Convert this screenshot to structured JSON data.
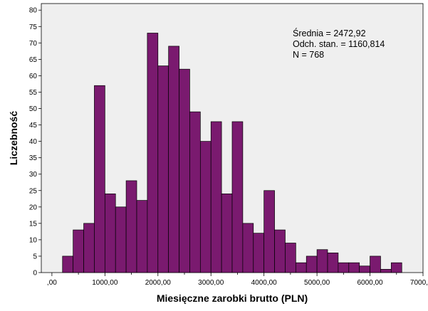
{
  "chart_data": {
    "type": "bar",
    "xlabel": "Miesięczne zarobki brutto (PLN)",
    "ylabel": "Liczebność",
    "bin_width": 200,
    "bins": [
      {
        "start": 200,
        "count": 5
      },
      {
        "start": 400,
        "count": 13
      },
      {
        "start": 600,
        "count": 15
      },
      {
        "start": 800,
        "count": 57
      },
      {
        "start": 1000,
        "count": 24
      },
      {
        "start": 1200,
        "count": 20
      },
      {
        "start": 1400,
        "count": 28
      },
      {
        "start": 1600,
        "count": 22
      },
      {
        "start": 1800,
        "count": 73
      },
      {
        "start": 2000,
        "count": 63
      },
      {
        "start": 2200,
        "count": 69
      },
      {
        "start": 2400,
        "count": 62
      },
      {
        "start": 2600,
        "count": 49
      },
      {
        "start": 2800,
        "count": 40
      },
      {
        "start": 3000,
        "count": 46
      },
      {
        "start": 3200,
        "count": 24
      },
      {
        "start": 3400,
        "count": 46
      },
      {
        "start": 3600,
        "count": 15
      },
      {
        "start": 3800,
        "count": 12
      },
      {
        "start": 4000,
        "count": 25
      },
      {
        "start": 4200,
        "count": 13
      },
      {
        "start": 4400,
        "count": 9
      },
      {
        "start": 4600,
        "count": 3
      },
      {
        "start": 4800,
        "count": 5
      },
      {
        "start": 5000,
        "count": 7
      },
      {
        "start": 5200,
        "count": 6
      },
      {
        "start": 5400,
        "count": 3
      },
      {
        "start": 5600,
        "count": 3
      },
      {
        "start": 5800,
        "count": 2
      },
      {
        "start": 6000,
        "count": 5
      },
      {
        "start": 6200,
        "count": 1
      },
      {
        "start": 6400,
        "count": 3
      }
    ],
    "xlim": [
      -200,
      7000
    ],
    "ylim": [
      0,
      82
    ],
    "x_ticks": [
      {
        "value": 0,
        "label": ",00"
      },
      {
        "value": 1000,
        "label": "1000,00"
      },
      {
        "value": 2000,
        "label": "2000,00"
      },
      {
        "value": 3000,
        "label": "3000,00"
      },
      {
        "value": 4000,
        "label": "4000,00"
      },
      {
        "value": 5000,
        "label": "5000,00"
      },
      {
        "value": 6000,
        "label": "6000,00"
      },
      {
        "value": 7000,
        "label": "7000,00"
      }
    ],
    "y_ticks": [
      0,
      5,
      10,
      15,
      20,
      25,
      30,
      35,
      40,
      45,
      50,
      55,
      60,
      65,
      70,
      75,
      80
    ],
    "stats": {
      "mean": "Średnia = 2472,92",
      "std": "Odch. stan. = 1160,814",
      "n": "N = 768"
    },
    "bar_color": "#7a1a6f",
    "plot_background": "#efefef",
    "grid": false
  }
}
